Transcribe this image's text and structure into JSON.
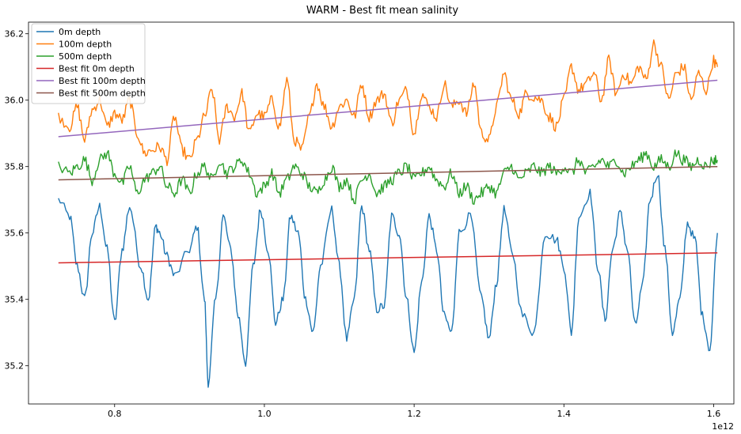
{
  "chart_data": {
    "type": "line",
    "title": "WARM - Best fit mean salinity",
    "xlabel": "",
    "ylabel": "",
    "x_offset_label": "1e12",
    "xlim": [
      0.685,
      1.627
    ],
    "ylim": [
      35.085,
      36.235
    ],
    "xticks": [
      0.8,
      1.0,
      1.2,
      1.4,
      1.6
    ],
    "xtick_labels": [
      "0.8",
      "1.0",
      "1.2",
      "1.4",
      "1.6"
    ],
    "yticks": [
      35.2,
      35.4,
      35.6,
      35.8,
      36.0,
      36.2
    ],
    "ytick_labels": [
      "35.2",
      "35.4",
      "35.6",
      "35.8",
      "36.0",
      "36.2"
    ],
    "legend_position": "upper-left",
    "series": [
      {
        "name": "0m depth",
        "color": "#1f77b4",
        "style": "seasonal",
        "x_range": [
          0.725,
          1.605
        ],
        "points": [
          [
            0.725,
            35.7
          ],
          [
            0.74,
            35.65
          ],
          [
            0.75,
            35.5
          ],
          [
            0.76,
            35.4
          ],
          [
            0.77,
            35.6
          ],
          [
            0.78,
            35.68
          ],
          [
            0.79,
            35.55
          ],
          [
            0.8,
            35.33
          ],
          [
            0.81,
            35.55
          ],
          [
            0.82,
            35.68
          ],
          [
            0.835,
            35.5
          ],
          [
            0.845,
            35.4
          ],
          [
            0.855,
            35.62
          ],
          [
            0.86,
            35.6
          ],
          [
            0.87,
            35.53
          ],
          [
            0.88,
            35.47
          ],
          [
            0.9,
            35.55
          ],
          [
            0.91,
            35.62
          ],
          [
            0.92,
            35.4
          ],
          [
            0.925,
            35.15
          ],
          [
            0.935,
            35.4
          ],
          [
            0.945,
            35.65
          ],
          [
            0.955,
            35.55
          ],
          [
            0.965,
            35.35
          ],
          [
            0.975,
            35.21
          ],
          [
            0.985,
            35.5
          ],
          [
            0.995,
            35.67
          ],
          [
            1.005,
            35.55
          ],
          [
            1.015,
            35.33
          ],
          [
            1.025,
            35.4
          ],
          [
            1.035,
            35.65
          ],
          [
            1.045,
            35.6
          ],
          [
            1.055,
            35.4
          ],
          [
            1.065,
            35.3
          ],
          [
            1.075,
            35.5
          ],
          [
            1.09,
            35.67
          ],
          [
            1.1,
            35.5
          ],
          [
            1.11,
            35.28
          ],
          [
            1.12,
            35.4
          ],
          [
            1.13,
            35.68
          ],
          [
            1.14,
            35.55
          ],
          [
            1.15,
            35.37
          ],
          [
            1.16,
            35.38
          ],
          [
            1.17,
            35.65
          ],
          [
            1.18,
            35.6
          ],
          [
            1.19,
            35.4
          ],
          [
            1.2,
            35.24
          ],
          [
            1.21,
            35.45
          ],
          [
            1.22,
            35.65
          ],
          [
            1.23,
            35.55
          ],
          [
            1.24,
            35.35
          ],
          [
            1.25,
            35.3
          ],
          [
            1.26,
            35.6
          ],
          [
            1.275,
            35.65
          ],
          [
            1.29,
            35.4
          ],
          [
            1.3,
            35.28
          ],
          [
            1.31,
            35.45
          ],
          [
            1.32,
            35.67
          ],
          [
            1.33,
            35.55
          ],
          [
            1.345,
            35.35
          ],
          [
            1.36,
            35.3
          ],
          [
            1.375,
            35.6
          ],
          [
            1.39,
            35.58
          ],
          [
            1.4,
            35.5
          ],
          [
            1.41,
            35.3
          ],
          [
            1.42,
            35.65
          ],
          [
            1.435,
            35.72
          ],
          [
            1.445,
            35.5
          ],
          [
            1.455,
            35.34
          ],
          [
            1.465,
            35.55
          ],
          [
            1.475,
            35.66
          ],
          [
            1.485,
            35.55
          ],
          [
            1.495,
            35.32
          ],
          [
            1.505,
            35.44
          ],
          [
            1.515,
            35.7
          ],
          [
            1.525,
            35.78
          ],
          [
            1.535,
            35.55
          ],
          [
            1.545,
            35.3
          ],
          [
            1.555,
            35.4
          ],
          [
            1.565,
            35.63
          ],
          [
            1.575,
            35.58
          ],
          [
            1.585,
            35.35
          ],
          [
            1.595,
            35.25
          ],
          [
            1.605,
            35.6
          ]
        ]
      },
      {
        "name": "100m depth",
        "color": "#ff7f0e",
        "style": "noisy",
        "x_range": [
          0.725,
          1.605
        ],
        "points": [
          [
            0.725,
            35.95
          ],
          [
            0.74,
            35.92
          ],
          [
            0.75,
            35.98
          ],
          [
            0.76,
            35.88
          ],
          [
            0.77,
            35.97
          ],
          [
            0.78,
            36.0
          ],
          [
            0.79,
            35.92
          ],
          [
            0.8,
            35.96
          ],
          [
            0.81,
            35.94
          ],
          [
            0.82,
            36.0
          ],
          [
            0.83,
            35.9
          ],
          [
            0.84,
            35.84
          ],
          [
            0.85,
            35.85
          ],
          [
            0.86,
            35.86
          ],
          [
            0.87,
            35.82
          ],
          [
            0.88,
            35.95
          ],
          [
            0.89,
            35.85
          ],
          [
            0.9,
            35.82
          ],
          [
            0.91,
            35.88
          ],
          [
            0.92,
            35.95
          ],
          [
            0.93,
            36.03
          ],
          [
            0.94,
            35.88
          ],
          [
            0.95,
            35.98
          ],
          [
            0.96,
            35.95
          ],
          [
            0.97,
            36.02
          ],
          [
            0.98,
            35.9
          ],
          [
            0.99,
            35.96
          ],
          [
            1.0,
            35.95
          ],
          [
            1.01,
            36.0
          ],
          [
            1.02,
            35.92
          ],
          [
            1.03,
            36.06
          ],
          [
            1.04,
            35.88
          ],
          [
            1.05,
            35.85
          ],
          [
            1.06,
            35.95
          ],
          [
            1.07,
            36.05
          ],
          [
            1.08,
            35.98
          ],
          [
            1.09,
            35.92
          ],
          [
            1.1,
            35.98
          ],
          [
            1.11,
            36.0
          ],
          [
            1.12,
            35.95
          ],
          [
            1.13,
            36.05
          ],
          [
            1.14,
            35.95
          ],
          [
            1.15,
            36.0
          ],
          [
            1.16,
            36.02
          ],
          [
            1.17,
            35.93
          ],
          [
            1.18,
            36.0
          ],
          [
            1.19,
            36.03
          ],
          [
            1.2,
            35.9
          ],
          [
            1.21,
            36.02
          ],
          [
            1.22,
            35.98
          ],
          [
            1.23,
            35.95
          ],
          [
            1.24,
            36.05
          ],
          [
            1.25,
            35.98
          ],
          [
            1.26,
            36.0
          ],
          [
            1.27,
            35.96
          ],
          [
            1.28,
            36.05
          ],
          [
            1.29,
            35.9
          ],
          [
            1.3,
            35.88
          ],
          [
            1.31,
            35.98
          ],
          [
            1.32,
            36.08
          ],
          [
            1.33,
            36.0
          ],
          [
            1.34,
            35.96
          ],
          [
            1.35,
            36.02
          ],
          [
            1.36,
            36.01
          ],
          [
            1.37,
            36.0
          ],
          [
            1.38,
            35.95
          ],
          [
            1.39,
            35.92
          ],
          [
            1.4,
            36.0
          ],
          [
            1.41,
            36.1
          ],
          [
            1.42,
            36.03
          ],
          [
            1.43,
            36.05
          ],
          [
            1.44,
            36.08
          ],
          [
            1.45,
            36.0
          ],
          [
            1.46,
            36.12
          ],
          [
            1.47,
            36.02
          ],
          [
            1.48,
            36.08
          ],
          [
            1.49,
            36.05
          ],
          [
            1.5,
            36.1
          ],
          [
            1.51,
            36.06
          ],
          [
            1.52,
            36.17
          ],
          [
            1.53,
            36.1
          ],
          [
            1.54,
            36.0
          ],
          [
            1.55,
            36.08
          ],
          [
            1.56,
            36.1
          ],
          [
            1.57,
            36.0
          ],
          [
            1.58,
            36.08
          ],
          [
            1.59,
            36.03
          ],
          [
            1.6,
            36.12
          ],
          [
            1.605,
            36.1
          ]
        ]
      },
      {
        "name": "500m depth",
        "color": "#2ca02c",
        "style": "noisy",
        "x_range": [
          0.725,
          1.605
        ],
        "points": [
          [
            0.725,
            35.8
          ],
          [
            0.74,
            35.78
          ],
          [
            0.75,
            35.8
          ],
          [
            0.76,
            35.82
          ],
          [
            0.77,
            35.76
          ],
          [
            0.78,
            35.82
          ],
          [
            0.79,
            35.84
          ],
          [
            0.8,
            35.78
          ],
          [
            0.81,
            35.75
          ],
          [
            0.82,
            35.8
          ],
          [
            0.83,
            35.72
          ],
          [
            0.84,
            35.76
          ],
          [
            0.85,
            35.78
          ],
          [
            0.86,
            35.8
          ],
          [
            0.87,
            35.74
          ],
          [
            0.88,
            35.72
          ],
          [
            0.89,
            35.76
          ],
          [
            0.9,
            35.72
          ],
          [
            0.91,
            35.78
          ],
          [
            0.92,
            35.8
          ],
          [
            0.93,
            35.76
          ],
          [
            0.94,
            35.82
          ],
          [
            0.95,
            35.78
          ],
          [
            0.96,
            35.8
          ],
          [
            0.97,
            35.82
          ],
          [
            0.98,
            35.78
          ],
          [
            0.99,
            35.72
          ],
          [
            1.0,
            35.74
          ],
          [
            1.01,
            35.78
          ],
          [
            1.02,
            35.72
          ],
          [
            1.03,
            35.76
          ],
          [
            1.04,
            35.8
          ],
          [
            1.05,
            35.78
          ],
          [
            1.06,
            35.74
          ],
          [
            1.07,
            35.72
          ],
          [
            1.08,
            35.76
          ],
          [
            1.09,
            35.8
          ],
          [
            1.1,
            35.74
          ],
          [
            1.11,
            35.76
          ],
          [
            1.12,
            35.7
          ],
          [
            1.13,
            35.76
          ],
          [
            1.14,
            35.78
          ],
          [
            1.15,
            35.72
          ],
          [
            1.16,
            35.74
          ],
          [
            1.17,
            35.76
          ],
          [
            1.18,
            35.78
          ],
          [
            1.19,
            35.8
          ],
          [
            1.2,
            35.76
          ],
          [
            1.21,
            35.78
          ],
          [
            1.22,
            35.8
          ],
          [
            1.23,
            35.76
          ],
          [
            1.24,
            35.74
          ],
          [
            1.25,
            35.78
          ],
          [
            1.26,
            35.72
          ],
          [
            1.27,
            35.74
          ],
          [
            1.28,
            35.7
          ],
          [
            1.29,
            35.72
          ],
          [
            1.3,
            35.74
          ],
          [
            1.31,
            35.72
          ],
          [
            1.32,
            35.78
          ],
          [
            1.33,
            35.8
          ],
          [
            1.34,
            35.76
          ],
          [
            1.35,
            35.78
          ],
          [
            1.36,
            35.8
          ],
          [
            1.37,
            35.78
          ],
          [
            1.38,
            35.8
          ],
          [
            1.39,
            35.78
          ],
          [
            1.4,
            35.8
          ],
          [
            1.41,
            35.78
          ],
          [
            1.42,
            35.82
          ],
          [
            1.43,
            35.78
          ],
          [
            1.44,
            35.8
          ],
          [
            1.45,
            35.82
          ],
          [
            1.46,
            35.8
          ],
          [
            1.47,
            35.82
          ],
          [
            1.48,
            35.78
          ],
          [
            1.49,
            35.8
          ],
          [
            1.5,
            35.82
          ],
          [
            1.51,
            35.84
          ],
          [
            1.52,
            35.8
          ],
          [
            1.53,
            35.82
          ],
          [
            1.54,
            35.8
          ],
          [
            1.55,
            35.84
          ],
          [
            1.56,
            35.82
          ],
          [
            1.57,
            35.8
          ],
          [
            1.58,
            35.82
          ],
          [
            1.59,
            35.8
          ],
          [
            1.6,
            35.82
          ],
          [
            1.605,
            35.82
          ]
        ]
      },
      {
        "name": "Best fit 0m depth",
        "color": "#d62728",
        "style": "straight",
        "points": [
          [
            0.725,
            35.51
          ],
          [
            1.605,
            35.54
          ]
        ]
      },
      {
        "name": "Best fit 100m depth",
        "color": "#9467bd",
        "style": "straight",
        "points": [
          [
            0.725,
            35.89
          ],
          [
            1.605,
            36.06
          ]
        ]
      },
      {
        "name": "Best fit 500m depth",
        "color": "#8c564b",
        "style": "straight",
        "points": [
          [
            0.725,
            35.76
          ],
          [
            1.605,
            35.8
          ]
        ]
      }
    ]
  }
}
